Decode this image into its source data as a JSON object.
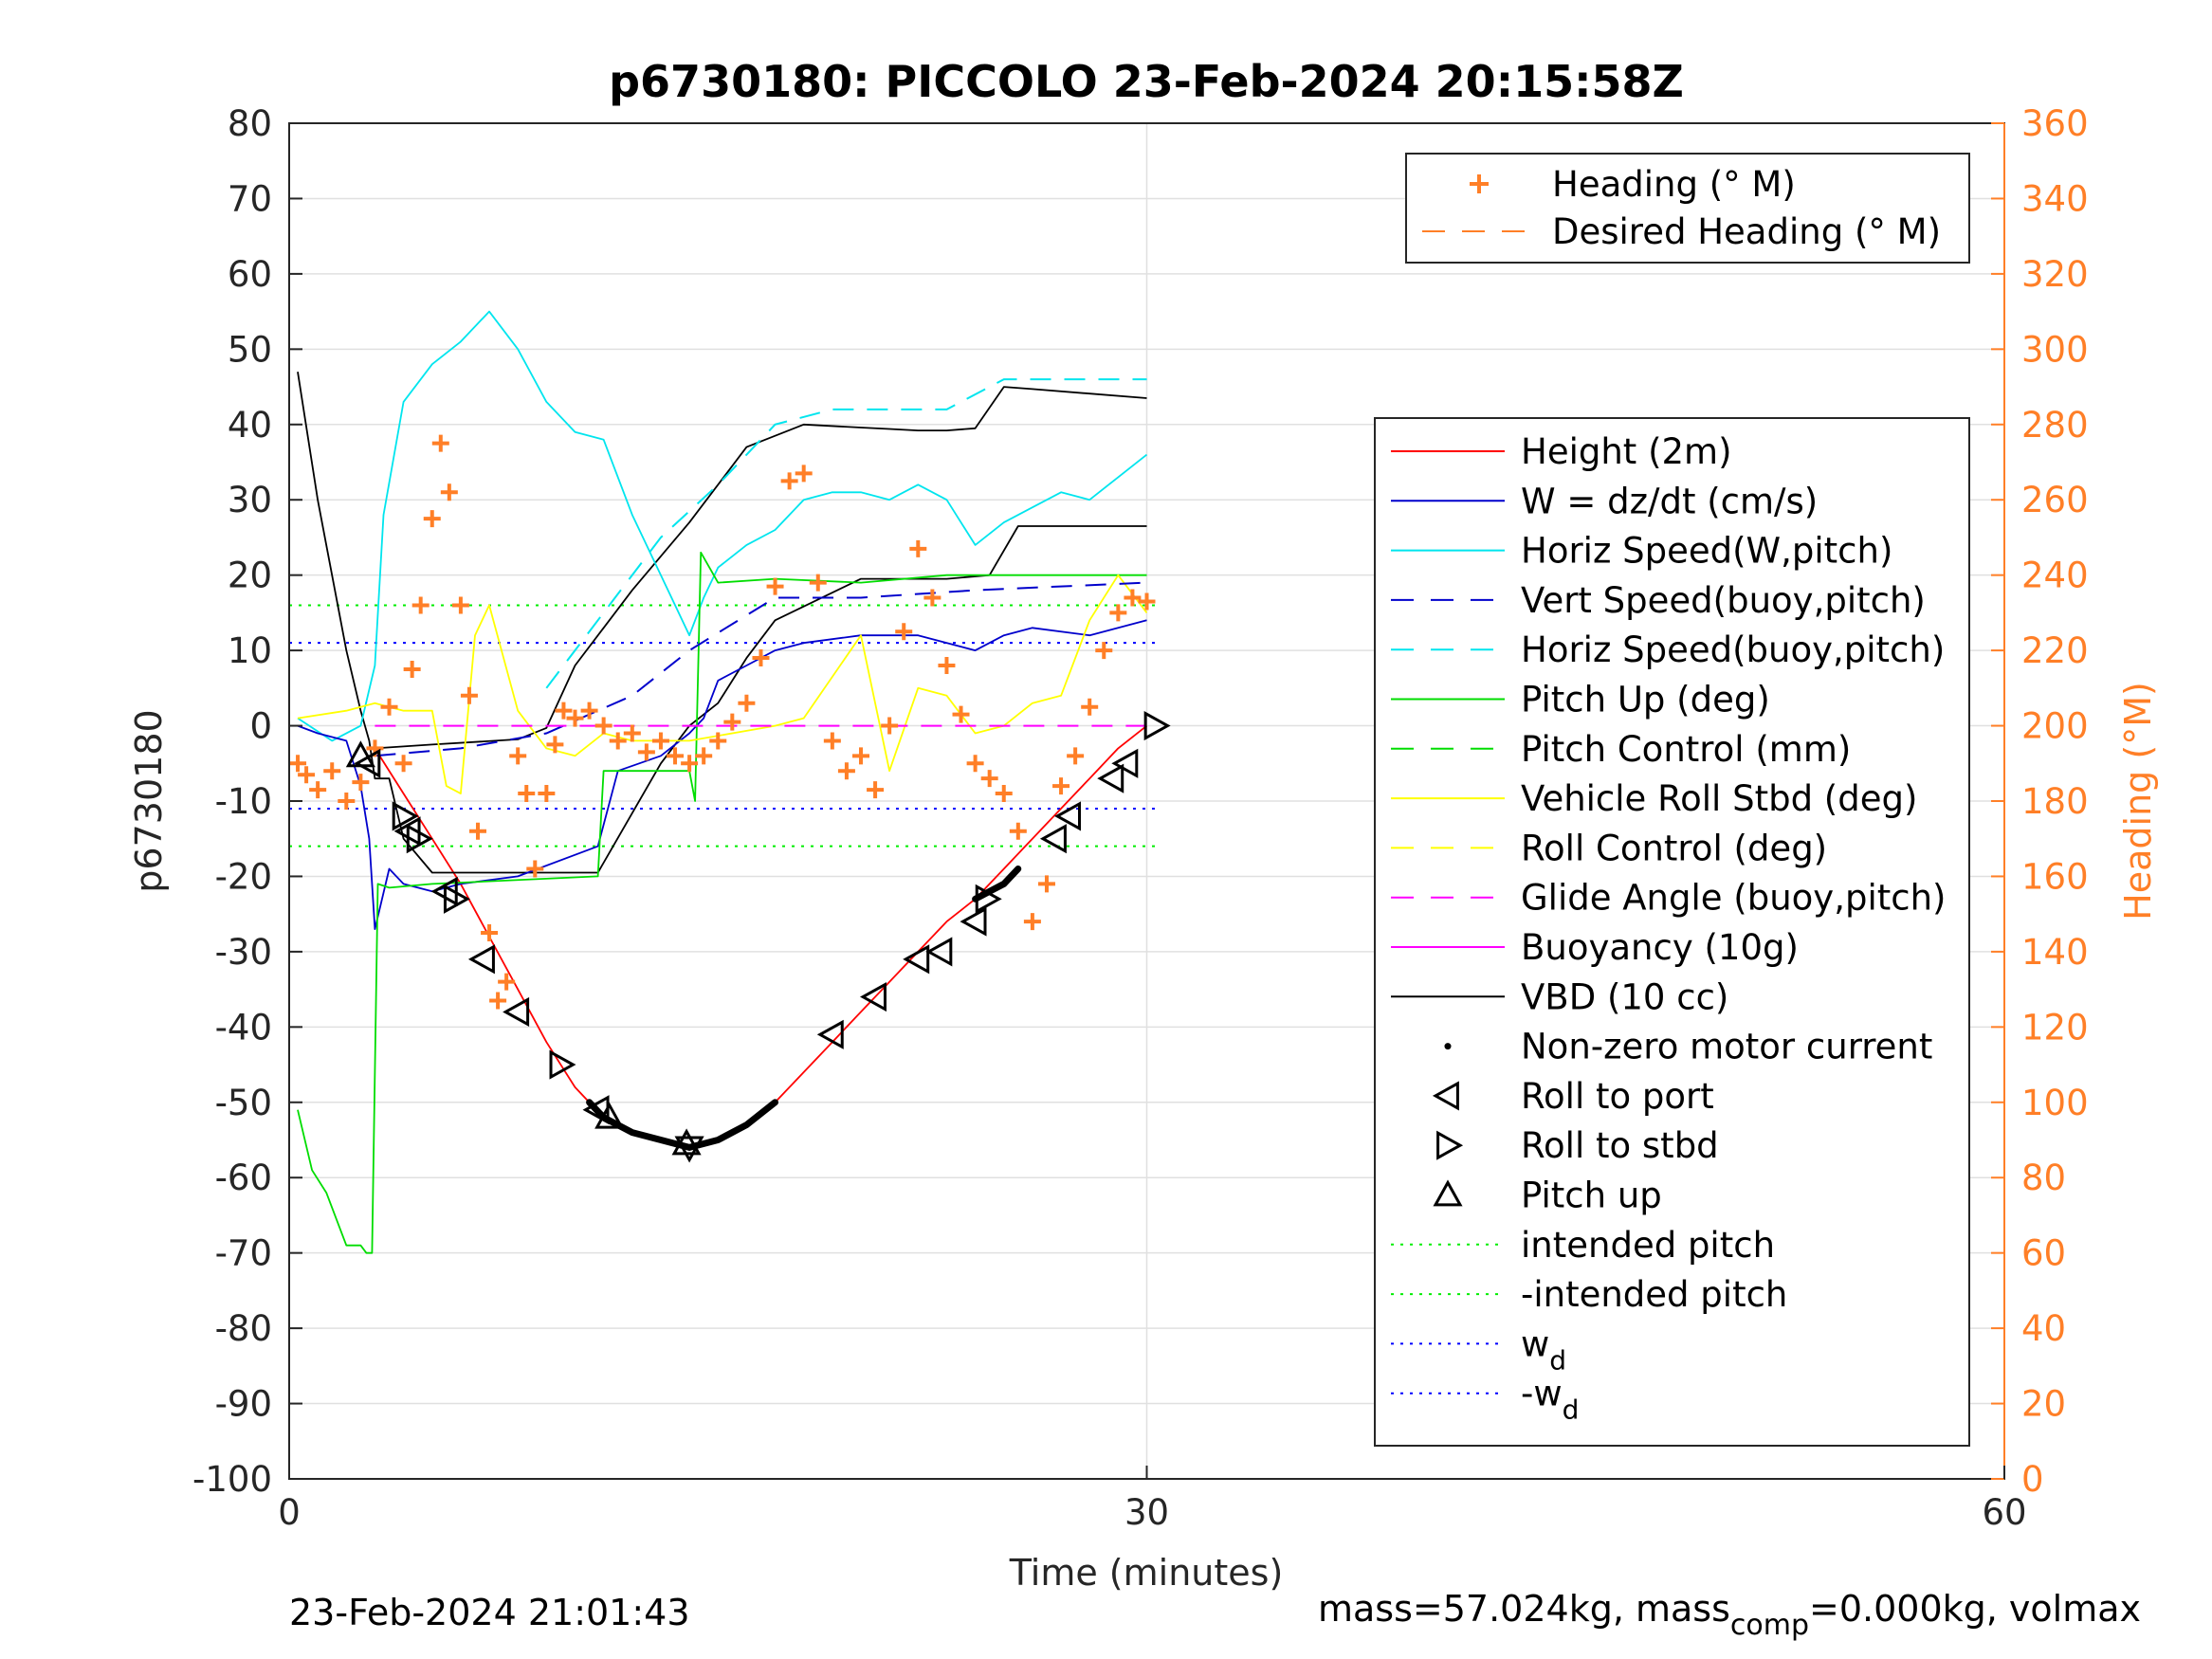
{
  "chart_data": {
    "type": "line",
    "title": "p6730180: PICCOLO 23-Feb-2024 20:15:58Z",
    "xlabel": "Time (minutes)",
    "ylabel": "p6730180",
    "y2label": "Heading (°M)",
    "xlim": [
      0,
      60
    ],
    "ylim": [
      -100,
      80
    ],
    "y2lim": [
      0,
      360
    ],
    "xticks": [
      0,
      30,
      60
    ],
    "yticks": [
      80,
      70,
      60,
      50,
      40,
      30,
      20,
      10,
      0,
      -10,
      -20,
      -30,
      -40,
      -50,
      -60,
      -70,
      -80,
      -90,
      -100
    ],
    "y2ticks": [
      360,
      340,
      320,
      300,
      280,
      260,
      240,
      220,
      200,
      180,
      160,
      140,
      120,
      100,
      80,
      60,
      40,
      20,
      0
    ],
    "grid": true,
    "footer_left": "23-Feb-2024 21:01:43",
    "footer_right": "mass=57.024kg, mass",
    "footer_right_sub": "comp",
    "footer_right_tail": "=0.000kg, volmax",
    "colors": {
      "height": "#ff0000",
      "w": "#0000cc",
      "horiz": "#00e5ee",
      "pitch": "#00dd00",
      "roll": "#ffff00",
      "glide": "#ff00ff",
      "vbd": "#000000",
      "heading": "#ff7f27",
      "intended": "#00ee00",
      "wd": "#0000ff"
    },
    "legend_top": [
      {
        "label": "Heading (° M)",
        "style": "plus",
        "color": "#ff7f27"
      },
      {
        "label": "Desired Heading (° M)",
        "style": "dash",
        "color": "#ff7f27"
      }
    ],
    "legend_main": [
      {
        "label": "Height (2m)",
        "style": "solid",
        "color": "#ff0000"
      },
      {
        "label": "W = dz/dt (cm/s)",
        "style": "solid",
        "color": "#0000cc"
      },
      {
        "label": "Horiz Speed(W,pitch)",
        "style": "solid",
        "color": "#00e5ee"
      },
      {
        "label": "Vert Speed(buoy,pitch)",
        "style": "dash",
        "color": "#0000cc"
      },
      {
        "label": "Horiz Speed(buoy,pitch)",
        "style": "dash",
        "color": "#00e5ee"
      },
      {
        "label": "Pitch Up (deg)",
        "style": "solid",
        "color": "#00dd00"
      },
      {
        "label": "Pitch Control (mm)",
        "style": "dash",
        "color": "#00dd00"
      },
      {
        "label": "Vehicle Roll Stbd (deg)",
        "style": "solid",
        "color": "#ffff00"
      },
      {
        "label": "Roll Control (deg)",
        "style": "dash",
        "color": "#ffff00"
      },
      {
        "label": "Glide Angle (buoy,pitch)",
        "style": "dash",
        "color": "#ff00ff"
      },
      {
        "label": "Buoyancy (10g)",
        "style": "solid",
        "color": "#ff00ff"
      },
      {
        "label": "VBD (10 cc)",
        "style": "solid",
        "color": "#000000"
      },
      {
        "label": "Non-zero motor current",
        "style": "dot",
        "color": "#000000"
      },
      {
        "label": "Roll to port",
        "style": "tri-left",
        "color": "#000000"
      },
      {
        "label": "Roll to stbd",
        "style": "tri-right",
        "color": "#000000"
      },
      {
        "label": "Pitch up",
        "style": "tri-up",
        "color": "#000000"
      },
      {
        "label": "intended pitch",
        "style": "dotted",
        "color": "#00ee00"
      },
      {
        "label": "-intended pitch",
        "style": "dotted",
        "color": "#00ee00"
      },
      {
        "label": "w",
        "sub": "d",
        "style": "dotted",
        "color": "#0000ff"
      },
      {
        "label": "-w",
        "sub": "d",
        "style": "dotted",
        "color": "#0000ff"
      }
    ],
    "series": [
      {
        "key": "height",
        "name": "Height (2m)",
        "x": [
          3.0,
          4.0,
          5.0,
          6.0,
          7.0,
          8.0,
          9.0,
          10.0,
          11.0,
          12.0,
          13.0,
          14.0,
          15.0,
          16.0,
          17.0,
          18.0,
          19.0,
          20.0,
          21.0,
          22.0,
          23.0,
          24.0,
          25.0,
          26.0,
          27.0,
          28.0,
          29.0,
          30.0
        ],
        "y": [
          -3,
          -9,
          -15,
          -21,
          -28,
          -35,
          -42,
          -48,
          -52,
          -54,
          -55,
          -56,
          -55,
          -53,
          -50,
          -46,
          -42,
          -38,
          -34,
          -30,
          -26,
          -23,
          -19,
          -15,
          -11,
          -7,
          -3,
          0
        ]
      },
      {
        "key": "vbd",
        "name": "VBD (10 cc)",
        "x": [
          0.3,
          1.0,
          1.5,
          2.0,
          2.5,
          2.8,
          3.0,
          3.5,
          4.0,
          5.0,
          8.0,
          10.8,
          13.0,
          14.0,
          15.0,
          16.0,
          17.0,
          20.0,
          23.0,
          24.5,
          25.5,
          30.0
        ],
        "y": [
          47,
          30,
          20,
          10,
          2,
          -2,
          -7,
          -7,
          -15,
          -19.5,
          -19.5,
          -19.5,
          -5,
          0,
          3,
          9,
          14,
          19.5,
          19.5,
          20,
          26.5,
          26.5
        ]
      },
      {
        "key": "buoy",
        "name": "Buoyancy (10g)",
        "x": [
          3.0,
          5.0,
          8.0,
          9.0,
          10.0,
          12.0,
          14.0,
          16.0,
          18.0,
          20.0,
          21.0,
          22.0,
          23.0,
          24.0,
          25.0,
          26.0,
          30.0
        ],
        "y": [
          -3,
          -2.5,
          -1.8,
          -0.3,
          8,
          18,
          27,
          37,
          40,
          39.6,
          39.4,
          39.2,
          39.2,
          39.5,
          45,
          44.7,
          43.5
        ]
      },
      {
        "key": "horiz",
        "name": "Horiz Speed(W,pitch)",
        "x": [
          0.3,
          1.5,
          2.5,
          3.0,
          3.3,
          4.0,
          5.0,
          6.0,
          7.0,
          8.0,
          9.0,
          10.0,
          11.0,
          12.0,
          13.0,
          14.0,
          14.5,
          15.0,
          16.0,
          17.0,
          18.0,
          19.0,
          20.0,
          21.0,
          22.0,
          23.0,
          24.0,
          25.0,
          26.0,
          27.0,
          28.0,
          29.0,
          30.0
        ],
        "y": [
          1,
          -2,
          0,
          8,
          28,
          43,
          48,
          51,
          55,
          50,
          43,
          39,
          38,
          28,
          20,
          12,
          17,
          21,
          24,
          26,
          30,
          31,
          31,
          30,
          32,
          30,
          24,
          27,
          29,
          31,
          30,
          33,
          36
        ]
      },
      {
        "key": "w",
        "name": "W = dz/dt (cm/s)",
        "x": [
          0.3,
          1.0,
          2.0,
          2.5,
          2.8,
          3.0,
          3.5,
          4.0,
          5.0,
          6.0,
          8.0,
          10.8,
          11.5,
          13.0,
          14.0,
          14.5,
          15.0,
          16.0,
          17.0,
          18.0,
          20.0,
          22.0,
          24.0,
          25.0,
          26.0,
          28.0,
          30.0
        ],
        "y": [
          0,
          -1,
          -2,
          -8,
          -15,
          -27,
          -19,
          -21,
          -22,
          -21,
          -20,
          -16,
          -6,
          -4,
          -1,
          1,
          6,
          8,
          10,
          11,
          12,
          12,
          10,
          12,
          13,
          12,
          14
        ]
      },
      {
        "key": "pitch",
        "name": "Pitch Up (deg)",
        "x": [
          0.3,
          0.8,
          1.3,
          2.0,
          2.5,
          2.7,
          2.9,
          3.1,
          3.5,
          5.0,
          10.8,
          11.0,
          14.0,
          14.2,
          14.4,
          15.0,
          17.0,
          20.0,
          23.0,
          26.0,
          30.0
        ],
        "y": [
          -51,
          -59,
          -62,
          -69,
          -69,
          -70,
          -70,
          -21,
          -21.5,
          -21,
          -20,
          -6,
          -6,
          -10,
          23,
          19,
          19.5,
          19,
          20,
          20,
          20
        ]
      },
      {
        "key": "roll",
        "name": "Vehicle Roll Stbd (deg)",
        "x": [
          0.3,
          2.0,
          3.0,
          4.0,
          5.0,
          5.5,
          6.0,
          6.5,
          7.0,
          8.0,
          9.0,
          10.0,
          11.0,
          12.0,
          14.0,
          17.0,
          18.0,
          20.0,
          21.0,
          22.0,
          23.0,
          24.0,
          25.0,
          26.0,
          27.0,
          28.0,
          29.0,
          30.0
        ],
        "y": [
          1,
          2,
          3,
          2,
          2,
          -8,
          -9,
          12,
          16,
          2,
          -3,
          -4,
          -1,
          -2,
          -2,
          0,
          1,
          12,
          -6,
          5,
          4,
          -1,
          0,
          3,
          4,
          14,
          20,
          15
        ]
      }
    ],
    "dashed_series": [
      {
        "key": "vert_buoy",
        "name": "Vert Speed(buoy,pitch)",
        "x": [
          3.0,
          6.0,
          9.0,
          12.0,
          14.0,
          17.0,
          20.0,
          24.0,
          30.0
        ],
        "y": [
          -4,
          -3,
          -1,
          4,
          10,
          17,
          17,
          18,
          19
        ]
      },
      {
        "key": "horiz_buoy",
        "name": "Horiz Speed(buoy,pitch)",
        "x": [
          9.0,
          11.0,
          13.0,
          15.0,
          17.0,
          19.0,
          21.0,
          23.0,
          25.0,
          27.0,
          30.0
        ],
        "y": [
          5,
          15,
          25,
          32,
          40,
          42,
          42,
          42,
          46,
          46,
          46
        ]
      },
      {
        "key": "glide",
        "name": "Glide Angle (buoy,pitch)",
        "x": [
          3.0,
          10.0,
          20.0,
          30.0
        ],
        "y": [
          0,
          0,
          0,
          0
        ]
      }
    ],
    "reference_lines": [
      {
        "name": "intended pitch",
        "y": 16,
        "color": "#00ee00"
      },
      {
        "name": "-intended pitch",
        "y": -16,
        "color": "#00ee00"
      },
      {
        "name": "w_d",
        "y": 11,
        "color": "#0000ff"
      },
      {
        "name": "-w_d",
        "y": -11,
        "color": "#0000ff"
      }
    ],
    "heading": {
      "name": "Heading (° M)",
      "x": [
        0.3,
        0.6,
        1.0,
        1.5,
        2.0,
        2.5,
        3.0,
        3.5,
        4.0,
        4.3,
        4.6,
        5.0,
        5.3,
        5.6,
        6.0,
        6.3,
        6.6,
        7.0,
        7.3,
        7.6,
        8.0,
        8.3,
        8.6,
        9.0,
        9.3,
        9.6,
        10.0,
        10.5,
        11.0,
        11.5,
        12.0,
        12.5,
        13.0,
        13.5,
        14.0,
        14.5,
        15.0,
        15.5,
        16.0,
        16.5,
        17.0,
        17.5,
        18.0,
        18.5,
        19.0,
        19.5,
        20.0,
        20.5,
        21.0,
        21.5,
        22.0,
        22.5,
        23.0,
        23.5,
        24.0,
        24.5,
        25.0,
        25.5,
        26.0,
        26.5,
        27.0,
        27.5,
        28.0,
        28.5,
        29.0,
        29.5,
        30.0
      ],
      "y": [
        190,
        187,
        183,
        188,
        180,
        185,
        194,
        205,
        190,
        215,
        232,
        255,
        275,
        262,
        232,
        208,
        172,
        145,
        127,
        132,
        192,
        182,
        162,
        182,
        195,
        204,
        202,
        204,
        200,
        196,
        198,
        193,
        196,
        192,
        190,
        192,
        196,
        201,
        206,
        218,
        237,
        265,
        267,
        238,
        196,
        188,
        192,
        183,
        200,
        225,
        247,
        234,
        216,
        203,
        190,
        186,
        182,
        172,
        148,
        158,
        184,
        192,
        205,
        220,
        230,
        234,
        233
      ]
    },
    "motor_current": [
      {
        "x": [
          10.5,
          11.0,
          12.0,
          13.0,
          14.0,
          15.0,
          16.0,
          17.0
        ],
        "y": [
          -50,
          -52,
          -54,
          -55,
          -56,
          -55,
          -53,
          -50
        ]
      },
      {
        "x": [
          24.0,
          24.5,
          25.0,
          25.5
        ],
        "y": [
          -23,
          -22,
          -21,
          -19
        ]
      }
    ],
    "markers": [
      {
        "shape": "tri-up",
        "x": 2.5,
        "y": -4
      },
      {
        "shape": "tri-left",
        "x": 2.8,
        "y": -5
      },
      {
        "shape": "tri-right",
        "x": 4.0,
        "y": -12
      },
      {
        "shape": "tri-left",
        "x": 4.2,
        "y": -14
      },
      {
        "shape": "tri-right",
        "x": 4.5,
        "y": -15
      },
      {
        "shape": "tri-left",
        "x": 5.5,
        "y": -22
      },
      {
        "shape": "tri-right",
        "x": 5.8,
        "y": -23
      },
      {
        "shape": "tri-left",
        "x": 6.8,
        "y": -31
      },
      {
        "shape": "tri-left",
        "x": 8.0,
        "y": -38
      },
      {
        "shape": "tri-right",
        "x": 9.5,
        "y": -45
      },
      {
        "shape": "tri-left",
        "x": 10.8,
        "y": -51
      },
      {
        "shape": "tri-up",
        "x": 11.2,
        "y": -52
      },
      {
        "shape": "tri-up",
        "x": 13.9,
        "y": -55.5
      },
      {
        "shape": "tri-down",
        "x": 14.0,
        "y": -56
      },
      {
        "shape": "tri-left",
        "x": 19.0,
        "y": -41
      },
      {
        "shape": "tri-left",
        "x": 20.5,
        "y": -36
      },
      {
        "shape": "tri-left",
        "x": 22.0,
        "y": -31
      },
      {
        "shape": "tri-left",
        "x": 22.8,
        "y": -30
      },
      {
        "shape": "tri-left",
        "x": 24.0,
        "y": -26
      },
      {
        "shape": "tri-right",
        "x": 24.4,
        "y": -23
      },
      {
        "shape": "tri-left",
        "x": 26.8,
        "y": -15
      },
      {
        "shape": "tri-left",
        "x": 27.3,
        "y": -12
      },
      {
        "shape": "tri-left",
        "x": 28.8,
        "y": -7
      },
      {
        "shape": "tri-left",
        "x": 29.3,
        "y": -5
      },
      {
        "shape": "tri-right",
        "x": 30.3,
        "y": 0
      }
    ]
  }
}
